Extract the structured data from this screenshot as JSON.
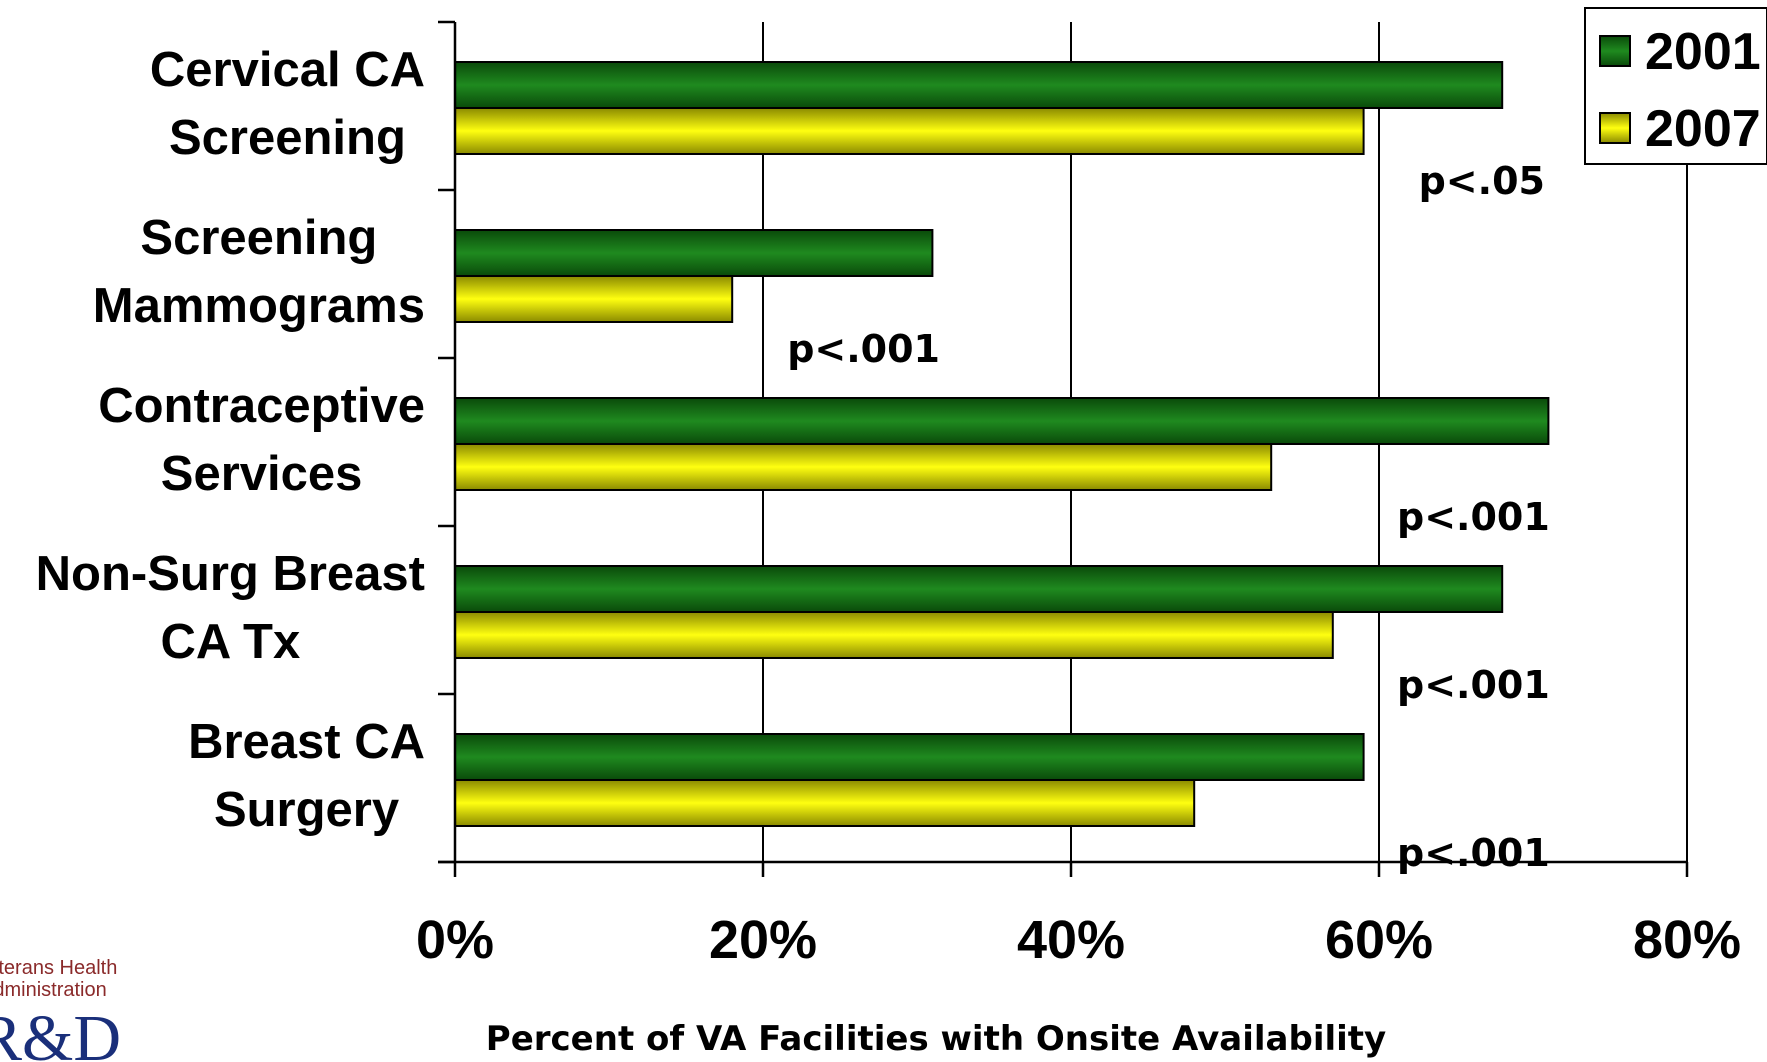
{
  "chart_data": {
    "type": "bar",
    "orientation": "horizontal",
    "categories": [
      [
        "Cervical CA",
        "Screening"
      ],
      [
        "Screening",
        "Mammograms"
      ],
      [
        "Contraceptive",
        "Services"
      ],
      [
        "Non-Surg Breast",
        "CA Tx"
      ],
      [
        "Breast CA",
        "Surgery"
      ]
    ],
    "series": [
      {
        "name": "2001",
        "color": "#1a7a1a",
        "values": [
          68,
          31,
          71,
          68,
          59
        ]
      },
      {
        "name": "2007",
        "color": "#f2f000",
        "values": [
          59,
          18,
          53,
          57,
          48
        ]
      }
    ],
    "annotations": [
      "p<.05",
      "p<.001",
      "p<.001",
      "p<.001",
      "p<.001"
    ],
    "xlim": [
      0,
      80
    ],
    "xticks": [
      0,
      20,
      40,
      60,
      80
    ],
    "xtick_labels": [
      "0%",
      "20%",
      "40%",
      "60%",
      "80%"
    ],
    "xlabel": "Percent of VA Facilities with Onsite Availability",
    "ylabel": "",
    "title": "",
    "grid": "vertical",
    "legend_position": "top-right"
  },
  "logo": {
    "line1": "Veterans Health",
    "line2": "Administration",
    "mark": "R&D"
  }
}
